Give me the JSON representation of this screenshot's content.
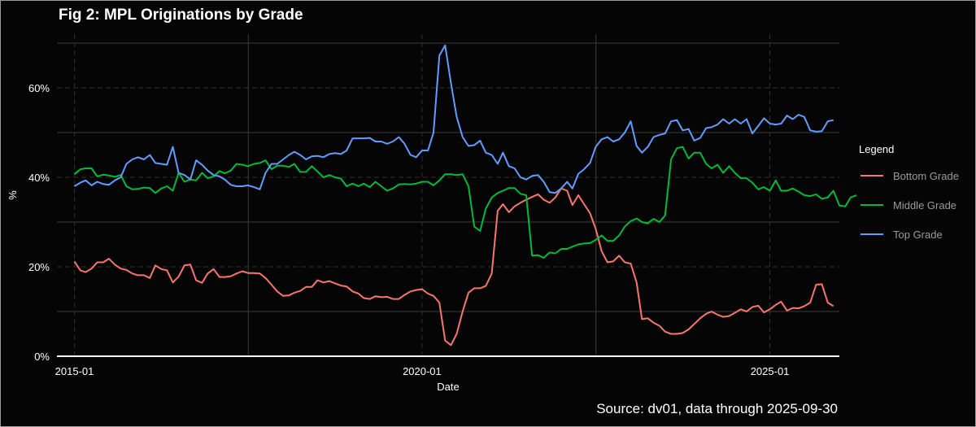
{
  "chart_data": {
    "type": "line",
    "title": "Fig 2: MPL Originations by Grade",
    "xlabel": "Date",
    "ylabel": "%",
    "caption": "Source: dv01, data through 2025-09-30",
    "legend_title": "Legend",
    "legend_position": "right",
    "grid": true,
    "background": "#050505",
    "x_range": [
      "2014-10-01",
      "2026-01-01"
    ],
    "ylim": [
      0,
      0.72
    ],
    "x_ticks": [
      {
        "value": "2015-01-01",
        "label": "2015-01"
      },
      {
        "value": "2020-01-01",
        "label": "2020-01"
      },
      {
        "value": "2025-01-01",
        "label": "2025-01"
      }
    ],
    "y_ticks": [
      {
        "value": 0,
        "label": "0%"
      },
      {
        "value": 0.2,
        "label": "20%"
      },
      {
        "value": 0.4,
        "label": "40%"
      },
      {
        "value": 0.6,
        "label": "60%"
      }
    ],
    "series": [
      {
        "name": "Bottom Grade",
        "color": "#f8766d",
        "start": "2015-01-01",
        "frequency": "monthly",
        "values": [
          0.212,
          0.192,
          0.188,
          0.196,
          0.21,
          0.21,
          0.218,
          0.205,
          0.196,
          0.193,
          0.185,
          0.181,
          0.181,
          0.175,
          0.203,
          0.195,
          0.192,
          0.165,
          0.178,
          0.203,
          0.205,
          0.17,
          0.164,
          0.185,
          0.195,
          0.177,
          0.177,
          0.179,
          0.185,
          0.19,
          0.186,
          0.186,
          0.185,
          0.175,
          0.16,
          0.145,
          0.135,
          0.136,
          0.142,
          0.146,
          0.155,
          0.155,
          0.17,
          0.165,
          0.168,
          0.163,
          0.158,
          0.156,
          0.145,
          0.14,
          0.13,
          0.128,
          0.134,
          0.132,
          0.133,
          0.128,
          0.128,
          0.137,
          0.145,
          0.148,
          0.15,
          0.14,
          0.135,
          0.12,
          0.035,
          0.025,
          0.05,
          0.1,
          0.142,
          0.152,
          0.152,
          0.157,
          0.185,
          0.325,
          0.34,
          0.322,
          0.335,
          0.343,
          0.35,
          0.356,
          0.362,
          0.35,
          0.343,
          0.355,
          0.375,
          0.37,
          0.338,
          0.36,
          0.34,
          0.32,
          0.285,
          0.235,
          0.21,
          0.212,
          0.225,
          0.21,
          0.207,
          0.165,
          0.083,
          0.085,
          0.075,
          0.068,
          0.055,
          0.05,
          0.05,
          0.052,
          0.06,
          0.072,
          0.085,
          0.095,
          0.1,
          0.093,
          0.088,
          0.09,
          0.097,
          0.105,
          0.1,
          0.11,
          0.113,
          0.098,
          0.105,
          0.115,
          0.122,
          0.102,
          0.108,
          0.107,
          0.112,
          0.12,
          0.16,
          0.161,
          0.12,
          0.112
        ]
      },
      {
        "name": "Middle Grade",
        "color": "#00ba38",
        "start": "2015-01-01",
        "frequency": "monthly",
        "values": [
          0.407,
          0.418,
          0.42,
          0.42,
          0.402,
          0.406,
          0.404,
          0.401,
          0.405,
          0.38,
          0.373,
          0.374,
          0.377,
          0.376,
          0.365,
          0.375,
          0.38,
          0.37,
          0.41,
          0.39,
          0.395,
          0.393,
          0.41,
          0.398,
          0.402,
          0.414,
          0.409,
          0.415,
          0.43,
          0.428,
          0.425,
          0.43,
          0.432,
          0.438,
          0.418,
          0.426,
          0.426,
          0.423,
          0.43,
          0.412,
          0.412,
          0.425,
          0.413,
          0.4,
          0.405,
          0.4,
          0.397,
          0.38,
          0.386,
          0.38,
          0.386,
          0.378,
          0.39,
          0.38,
          0.37,
          0.375,
          0.384,
          0.385,
          0.384,
          0.386,
          0.39,
          0.39,
          0.382,
          0.393,
          0.407,
          0.407,
          0.405,
          0.407,
          0.38,
          0.29,
          0.28,
          0.33,
          0.355,
          0.365,
          0.37,
          0.376,
          0.376,
          0.363,
          0.36,
          0.225,
          0.226,
          0.22,
          0.232,
          0.23,
          0.24,
          0.24,
          0.245,
          0.25,
          0.252,
          0.253,
          0.26,
          0.27,
          0.258,
          0.258,
          0.27,
          0.29,
          0.302,
          0.308,
          0.3,
          0.297,
          0.307,
          0.3,
          0.315,
          0.44,
          0.465,
          0.468,
          0.442,
          0.455,
          0.455,
          0.43,
          0.42,
          0.428,
          0.41,
          0.425,
          0.41,
          0.398,
          0.398,
          0.388,
          0.373,
          0.378,
          0.37,
          0.393,
          0.37,
          0.37,
          0.375,
          0.368,
          0.36,
          0.358,
          0.362,
          0.352,
          0.355,
          0.37,
          0.337,
          0.335,
          0.355,
          0.36
        ]
      },
      {
        "name": "Top Grade",
        "color": "#619cff",
        "start": "2015-01-01",
        "frequency": "monthly",
        "values": [
          0.38,
          0.388,
          0.393,
          0.382,
          0.39,
          0.385,
          0.383,
          0.393,
          0.4,
          0.43,
          0.44,
          0.445,
          0.44,
          0.45,
          0.432,
          0.43,
          0.428,
          0.468,
          0.41,
          0.405,
          0.395,
          0.438,
          0.428,
          0.415,
          0.405,
          0.402,
          0.395,
          0.383,
          0.38,
          0.38,
          0.382,
          0.378,
          0.373,
          0.41,
          0.43,
          0.43,
          0.44,
          0.45,
          0.457,
          0.45,
          0.44,
          0.447,
          0.448,
          0.445,
          0.452,
          0.454,
          0.452,
          0.46,
          0.487,
          0.487,
          0.487,
          0.488,
          0.48,
          0.48,
          0.475,
          0.48,
          0.49,
          0.475,
          0.45,
          0.445,
          0.46,
          0.46,
          0.5,
          0.672,
          0.695,
          0.61,
          0.535,
          0.49,
          0.47,
          0.472,
          0.482,
          0.455,
          0.45,
          0.43,
          0.455,
          0.425,
          0.42,
          0.4,
          0.395,
          0.403,
          0.405,
          0.39,
          0.367,
          0.365,
          0.375,
          0.39,
          0.375,
          0.408,
          0.418,
          0.432,
          0.468,
          0.485,
          0.49,
          0.48,
          0.485,
          0.5,
          0.525,
          0.47,
          0.455,
          0.468,
          0.49,
          0.495,
          0.498,
          0.525,
          0.528,
          0.505,
          0.508,
          0.482,
          0.488,
          0.51,
          0.512,
          0.518,
          0.53,
          0.52,
          0.53,
          0.52,
          0.53,
          0.498,
          0.515,
          0.532,
          0.52,
          0.518,
          0.52,
          0.538,
          0.53,
          0.54,
          0.535,
          0.505,
          0.502,
          0.503,
          0.525,
          0.528
        ]
      }
    ]
  }
}
